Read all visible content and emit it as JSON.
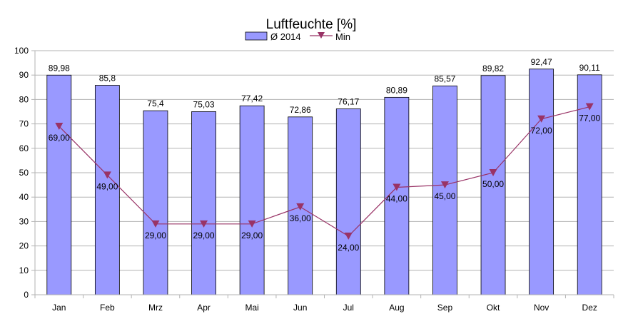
{
  "chart_data": {
    "type": "bar",
    "title": "Luftfeuchte [%]",
    "categories": [
      "Jan",
      "Feb",
      "Mrz",
      "Apr",
      "Mai",
      "Jun",
      "Jul",
      "Aug",
      "Sep",
      "Okt",
      "Nov",
      "Dez"
    ],
    "series": [
      {
        "name": "Ø 2014",
        "type": "bar",
        "color": "#9999ff",
        "values": [
          89.98,
          85.8,
          75.4,
          75.03,
          77.42,
          72.86,
          76.17,
          80.89,
          85.57,
          89.82,
          92.47,
          90.11
        ],
        "labels": [
          "89,98",
          "85,8",
          "75,4",
          "75,03",
          "77,42",
          "72,86",
          "76,17",
          "80,89",
          "85,57",
          "89,82",
          "92,47",
          "90,11"
        ]
      },
      {
        "name": "Min",
        "type": "line",
        "color": "#993366",
        "marker": "triangle-down",
        "values": [
          69,
          49,
          29,
          29,
          29,
          36,
          24,
          44,
          45,
          50,
          72,
          77
        ],
        "labels": [
          "69,00",
          "49,00",
          "29,00",
          "29,00",
          "29,00",
          "36,00",
          "24,00",
          "44,00",
          "45,00",
          "50,00",
          "72,00",
          "77,00"
        ]
      }
    ],
    "ylim": [
      0,
      100
    ],
    "yticks": [
      0,
      10,
      20,
      30,
      40,
      50,
      60,
      70,
      80,
      90,
      100
    ],
    "grid": true,
    "legend": "top-center"
  }
}
